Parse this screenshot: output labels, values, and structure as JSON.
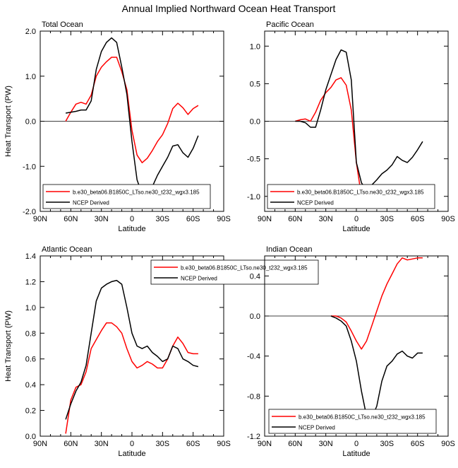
{
  "title": "Annual Implied Northward Ocean Heat Transport",
  "colors": {
    "model": "#ff0000",
    "ncep": "#000000"
  },
  "chart_data": [
    {
      "type": "line",
      "title": "Total Ocean",
      "xlabel": "Latitude",
      "ylabel": "Heat Transport (PW)",
      "xlim": [
        90,
        -90
      ],
      "ylim": [
        -2.0,
        2.0
      ],
      "xticks": [
        "90N",
        "60N",
        "30N",
        "0",
        "30S",
        "60S",
        "90S"
      ],
      "yticks": [
        "-2.0",
        "-1.0",
        "0.0",
        "1.0",
        "2.0"
      ],
      "legend": "bottom-left",
      "series": [
        {
          "name": "b.e30_beta06.B1850C_LTso.ne30_t232_wgx3.185",
          "x": [
            65,
            60,
            55,
            50,
            45,
            40,
            35,
            30,
            25,
            20,
            15,
            10,
            5,
            0,
            -5,
            -10,
            -15,
            -20,
            -25,
            -30,
            -35,
            -40,
            -45,
            -50,
            -55,
            -60,
            -65
          ],
          "y": [
            0.0,
            0.2,
            0.38,
            0.42,
            0.38,
            0.58,
            1.0,
            1.2,
            1.32,
            1.42,
            1.42,
            1.1,
            0.7,
            -0.2,
            -0.75,
            -0.92,
            -0.82,
            -0.65,
            -0.45,
            -0.3,
            -0.05,
            0.28,
            0.4,
            0.3,
            0.15,
            0.28,
            0.35
          ]
        },
        {
          "name": "NCEP Derived",
          "x": [
            65,
            60,
            55,
            50,
            45,
            40,
            35,
            30,
            25,
            20,
            15,
            10,
            5,
            0,
            -5,
            -10,
            -15,
            -20,
            -25,
            -30,
            -35,
            -40,
            -45,
            -50,
            -55,
            -60,
            -65
          ],
          "y": [
            0.18,
            0.2,
            0.22,
            0.25,
            0.25,
            0.45,
            1.15,
            1.55,
            1.75,
            1.85,
            1.75,
            1.2,
            0.6,
            -0.45,
            -1.3,
            -1.62,
            -1.58,
            -1.45,
            -1.2,
            -1.0,
            -0.8,
            -0.55,
            -0.52,
            -0.7,
            -0.8,
            -0.6,
            -0.32
          ]
        }
      ]
    },
    {
      "type": "line",
      "title": "Pacific Ocean",
      "xlabel": "Latitude",
      "ylabel": "",
      "xlim": [
        90,
        -90
      ],
      "ylim": [
        -1.2,
        1.2
      ],
      "xticks": [
        "90N",
        "60N",
        "30N",
        "0",
        "30S",
        "60S",
        "90S"
      ],
      "yticks": [
        "-1.0",
        "-0.5",
        "0.0",
        "0.5",
        "1.0"
      ],
      "legend": "bottom-left",
      "series": [
        {
          "name": "b.e30_beta06.B1850C_LTso.ne30_t232_wgx3.185",
          "x": [
            60,
            55,
            50,
            45,
            40,
            35,
            30,
            25,
            20,
            15,
            10,
            5,
            0,
            -5,
            -10,
            -15,
            -20,
            -25,
            -30,
            -35,
            -40,
            -45,
            -50,
            -55,
            -60,
            -65
          ],
          "y": [
            0.0,
            0.02,
            0.03,
            0.0,
            0.12,
            0.28,
            0.38,
            0.45,
            0.55,
            0.58,
            0.48,
            0.15,
            -0.55,
            -1.0,
            -1.12,
            -1.13,
            -1.12,
            -1.08,
            -1.05,
            -1.0,
            -0.97,
            -0.95,
            -0.97,
            -1.0,
            -0.95,
            -0.88
          ]
        },
        {
          "name": "NCEP Derived",
          "x": [
            60,
            55,
            50,
            45,
            40,
            35,
            30,
            25,
            20,
            15,
            10,
            5,
            0,
            -5,
            -10,
            -15,
            -20,
            -25,
            -30,
            -35,
            -40,
            -45,
            -50,
            -55,
            -60,
            -65
          ],
          "y": [
            0.0,
            0.0,
            -0.02,
            -0.08,
            -0.08,
            0.15,
            0.42,
            0.62,
            0.82,
            0.95,
            0.92,
            0.55,
            -0.55,
            -0.82,
            -0.92,
            -0.85,
            -0.78,
            -0.7,
            -0.65,
            -0.58,
            -0.47,
            -0.52,
            -0.55,
            -0.48,
            -0.38,
            -0.27
          ]
        }
      ]
    },
    {
      "type": "line",
      "title": "Atlantic Ocean",
      "xlabel": "Latitude",
      "ylabel": "Heat Transport (PW)",
      "xlim": [
        90,
        -90
      ],
      "ylim": [
        0.0,
        1.4
      ],
      "xticks": [
        "90N",
        "60N",
        "30N",
        "0",
        "30S",
        "60S",
        "90S"
      ],
      "yticks": [
        "0.0",
        "0.2",
        "0.4",
        "0.6",
        "0.8",
        "1.0",
        "1.2",
        "1.4"
      ],
      "legend": "top-right",
      "series": [
        {
          "name": "b.e30_beta06.B1850C_LTso.ne30_t232_wgx3.185",
          "x": [
            65,
            60,
            55,
            50,
            45,
            40,
            35,
            30,
            25,
            20,
            15,
            10,
            5,
            0,
            -5,
            -10,
            -15,
            -20,
            -25,
            -30,
            -35,
            -40,
            -45,
            -50,
            -55,
            -60,
            -65
          ],
          "y": [
            0.02,
            0.28,
            0.38,
            0.4,
            0.5,
            0.68,
            0.75,
            0.82,
            0.88,
            0.88,
            0.85,
            0.8,
            0.68,
            0.58,
            0.53,
            0.55,
            0.58,
            0.56,
            0.53,
            0.53,
            0.6,
            0.7,
            0.77,
            0.72,
            0.65,
            0.64,
            0.64
          ]
        },
        {
          "name": "NCEP Derived",
          "x": [
            65,
            60,
            55,
            50,
            45,
            40,
            35,
            30,
            25,
            20,
            15,
            10,
            5,
            0,
            -5,
            -10,
            -15,
            -20,
            -25,
            -30,
            -35,
            -40,
            -45,
            -50,
            -55,
            -60,
            -65
          ],
          "y": [
            0.13,
            0.25,
            0.35,
            0.42,
            0.55,
            0.8,
            1.05,
            1.15,
            1.18,
            1.2,
            1.21,
            1.18,
            1.0,
            0.8,
            0.7,
            0.68,
            0.7,
            0.65,
            0.62,
            0.58,
            0.6,
            0.7,
            0.68,
            0.6,
            0.58,
            0.55,
            0.54
          ]
        }
      ]
    },
    {
      "type": "line",
      "title": "Indian Ocean",
      "xlabel": "Latitude",
      "ylabel": "",
      "xlim": [
        90,
        -90
      ],
      "ylim": [
        -1.2,
        0.6
      ],
      "xticks": [
        "90N",
        "60N",
        "30N",
        "0",
        "30S",
        "60S",
        "90S"
      ],
      "yticks": [
        "-1.2",
        "-0.8",
        "-0.4",
        "0.0",
        "0.4"
      ],
      "legend": "bottom-right",
      "series": [
        {
          "name": "b.e30_beta06.B1850C_LTso.ne30_t232_wgx3.185",
          "x": [
            25,
            20,
            15,
            10,
            5,
            0,
            -5,
            -10,
            -15,
            -20,
            -25,
            -30,
            -35,
            -40,
            -45,
            -50,
            -55,
            -60,
            -65
          ],
          "y": [
            0.0,
            0.0,
            -0.02,
            -0.06,
            -0.15,
            -0.25,
            -0.33,
            -0.25,
            -0.1,
            0.05,
            0.2,
            0.32,
            0.42,
            0.52,
            0.58,
            0.56,
            0.57,
            0.58,
            0.58
          ]
        },
        {
          "name": "NCEP Derived",
          "x": [
            25,
            20,
            15,
            10,
            5,
            0,
            -5,
            -10,
            -15,
            -20,
            -25,
            -30,
            -35,
            -40,
            -45,
            -50,
            -55,
            -60,
            -65
          ],
          "y": [
            0.0,
            -0.02,
            -0.05,
            -0.1,
            -0.25,
            -0.45,
            -0.75,
            -1.0,
            -1.02,
            -0.9,
            -0.65,
            -0.5,
            -0.45,
            -0.38,
            -0.35,
            -0.4,
            -0.42,
            -0.37,
            -0.37
          ]
        }
      ]
    }
  ]
}
